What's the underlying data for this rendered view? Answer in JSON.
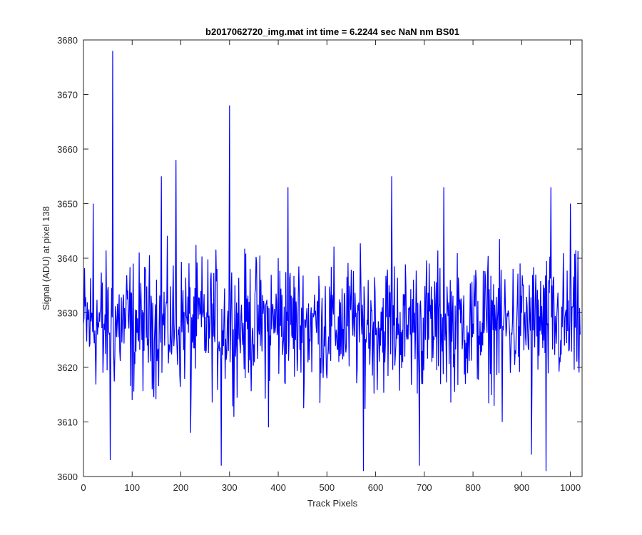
{
  "chart_data": {
    "type": "line",
    "title": "b2017062720_img.mat int time = 6.2244 sec  NaN nm BS01",
    "xlabel": "Track Pixels",
    "ylabel": "Signal (ADU) at pixel 138",
    "xlim": [
      0,
      1024
    ],
    "ylim": [
      3600,
      3680
    ],
    "xticks": [
      0,
      100,
      200,
      300,
      400,
      500,
      600,
      700,
      800,
      900,
      1000
    ],
    "yticks": [
      3600,
      3610,
      3620,
      3630,
      3640,
      3650,
      3660,
      3670,
      3680
    ],
    "grid": false,
    "legend": "none",
    "series_color": "#0000ff",
    "series": [
      {
        "x": [
          0,
          20,
          40,
          55,
          60,
          80,
          100,
          120,
          140,
          160,
          180,
          190,
          200,
          220,
          240,
          260,
          283,
          300,
          320,
          340,
          360,
          380,
          400,
          420,
          440,
          460,
          480,
          500,
          520,
          540,
          560,
          575,
          600,
          620,
          633,
          660,
          680,
          690,
          720,
          740,
          760,
          780,
          800,
          820,
          840,
          860,
          880,
          900,
          920,
          940,
          950,
          960,
          980,
          1000,
          1020
        ],
        "values": [
          3628,
          3650,
          3619,
          3603,
          3678,
          3628,
          3614,
          3625,
          3631,
          3655,
          3625,
          3658,
          3625,
          3608,
          3630,
          3628,
          3602,
          3668,
          3626,
          3632,
          3627,
          3609,
          3640,
          3653,
          3622,
          3628,
          3632,
          3618,
          3626,
          3624,
          3630,
          3601,
          3626,
          3624,
          3655,
          3622,
          3630,
          3602,
          3625,
          3653,
          3620,
          3630,
          3628,
          3624,
          3632,
          3610,
          3626,
          3630,
          3604,
          3626,
          3601,
          3653,
          3625,
          3650,
          3626
        ]
      }
    ]
  }
}
